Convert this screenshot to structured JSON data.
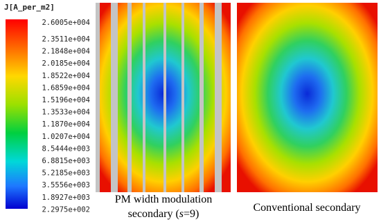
{
  "legend": {
    "title": "J[A_per_m2]",
    "labels": [
      "2.6005e+004",
      "2.3511e+004",
      "2.1848e+004",
      "2.0185e+004",
      "1.8522e+004",
      "1.6859e+004",
      "1.5196e+004",
      "1.3533e+004",
      "1.1870e+004",
      "1.0207e+004",
      "8.5444e+003",
      "6.8815e+003",
      "5.2185e+003",
      "3.5556e+003",
      "1.8927e+003",
      "2.2975e+002"
    ]
  },
  "left_caption": {
    "line1": "PM width modulation",
    "line2": [
      "secondary (",
      "s",
      "=9)"
    ]
  },
  "right_caption": "Conventional secondary"
}
